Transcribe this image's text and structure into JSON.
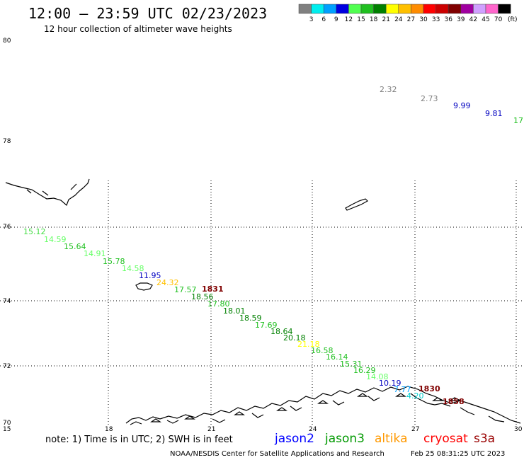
{
  "title": "12:00 – 23:59 UTC 02/23/2023",
  "subtitle": "12 hour collection of altimeter wave heights",
  "colorbar": {
    "labels": [
      "3",
      "6",
      "9",
      "12",
      "15",
      "18",
      "21",
      "24",
      "27",
      "30",
      "33",
      "36",
      "39",
      "42",
      "45",
      "70"
    ],
    "unit": "(ft)",
    "colors": [
      "#808080",
      "#00eeee",
      "#00a0ff",
      "#0000e0",
      "#50ff50",
      "#20c020",
      "#008000",
      "#ffff00",
      "#ffc000",
      "#ff8c00",
      "#ff0000",
      "#cc0000",
      "#800000",
      "#a000a0",
      "#d0a0ff",
      "#ff66cc",
      "#000000"
    ]
  },
  "map": {
    "lat_ticks": [
      "80",
      "78",
      "76",
      "74",
      "72",
      "70"
    ],
    "lon_ticks": [
      "15",
      "18",
      "21",
      "24",
      "27",
      "30"
    ],
    "lat_range": [
      70,
      80
    ],
    "lon_range": [
      15,
      30
    ]
  },
  "observations": [
    {
      "text": "2.32",
      "color": "#808080"
    },
    {
      "text": "2.73",
      "color": "#808080"
    },
    {
      "text": "9.99",
      "color": "#0000c0"
    },
    {
      "text": "9.81",
      "color": "#0000c0"
    },
    {
      "text": "17.",
      "color": "#20c020"
    },
    {
      "text": "15.12",
      "color": "#44dd44"
    },
    {
      "text": "14.59",
      "color": "#66ff66"
    },
    {
      "text": "15.64",
      "color": "#20c020"
    },
    {
      "text": "14.91",
      "color": "#66ff66"
    },
    {
      "text": "15.78",
      "color": "#20c020"
    },
    {
      "text": "14.58",
      "color": "#66ff66"
    },
    {
      "text": "11.95",
      "color": "#0000c0"
    },
    {
      "text": "24.32",
      "color": "#ffc000"
    },
    {
      "text": "17.57",
      "color": "#20c020"
    },
    {
      "text": "1831",
      "color": "#800000"
    },
    {
      "text": "18.56",
      "color": "#008000"
    },
    {
      "text": "17.80",
      "color": "#20c020"
    },
    {
      "text": "18.01",
      "color": "#008000"
    },
    {
      "text": "18.59",
      "color": "#008000"
    },
    {
      "text": "17.69",
      "color": "#20c020"
    },
    {
      "text": "18.64",
      "color": "#008000"
    },
    {
      "text": "20.18",
      "color": "#008000"
    },
    {
      "text": "21.18",
      "color": "#ffff00"
    },
    {
      "text": "16.58",
      "color": "#20c020"
    },
    {
      "text": "16.14",
      "color": "#20c020"
    },
    {
      "text": "15.31",
      "color": "#20c020"
    },
    {
      "text": "16.29",
      "color": "#20c020"
    },
    {
      "text": "14.08",
      "color": "#66ff66"
    },
    {
      "text": "10.19",
      "color": "#0000c0"
    },
    {
      "text": "7.77",
      "color": "#00a0ff"
    },
    {
      "text": "4.20",
      "color": "#00cccc"
    },
    {
      "text": "1830",
      "color": "#800000"
    },
    {
      "text": "1858",
      "color": "#800000"
    }
  ],
  "note": "note: 1) Time is in UTC; 2) SWH is in feet",
  "legend": [
    {
      "text": "jason2",
      "color": "#0000ff"
    },
    {
      "text": "jason3",
      "color": "#009900"
    },
    {
      "text": "altika",
      "color": "#ff9900"
    },
    {
      "text": "cryosat",
      "color": "#ff0000"
    },
    {
      "text": "s3a",
      "color": "#990000"
    }
  ],
  "footer": {
    "credit": "NOAA/NESDIS Center for Satellite Applications and Research",
    "timestamp": "Feb 25 08:31:25 UTC 2023"
  }
}
